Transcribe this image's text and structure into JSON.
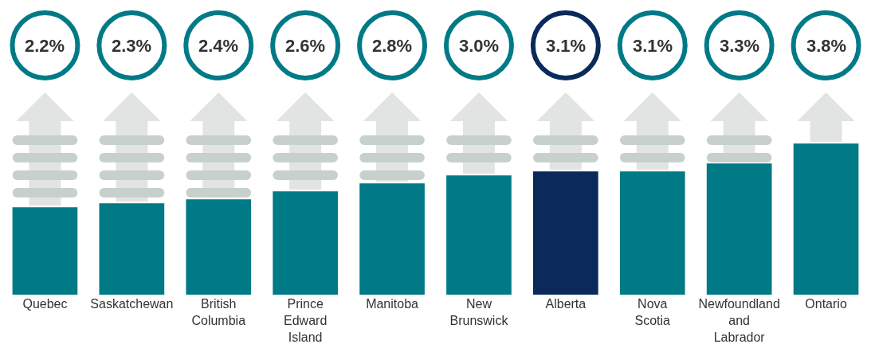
{
  "chart_data": {
    "type": "bar",
    "categories": [
      "Quebec",
      "Saskatchewan",
      "British Columbia",
      "Prince Edward Island",
      "Manitoba",
      "New Brunswick",
      "Alberta",
      "Nova Scotia",
      "Newfoundland and Labrador",
      "Ontario"
    ],
    "values": [
      2.2,
      2.3,
      2.4,
      2.6,
      2.8,
      3.0,
      3.1,
      3.1,
      3.3,
      3.8
    ],
    "colors": [
      "#007a86",
      "#007a86",
      "#007a86",
      "#007a86",
      "#007a86",
      "#007a86",
      "#0a2a5c",
      "#007a86",
      "#007a86",
      "#007a86"
    ],
    "value_labels": [
      "2.2%",
      "2.3%",
      "2.4%",
      "2.6%",
      "2.8%",
      "3.0%",
      "3.1%",
      "3.1%",
      "3.3%",
      "3.8%"
    ]
  }
}
